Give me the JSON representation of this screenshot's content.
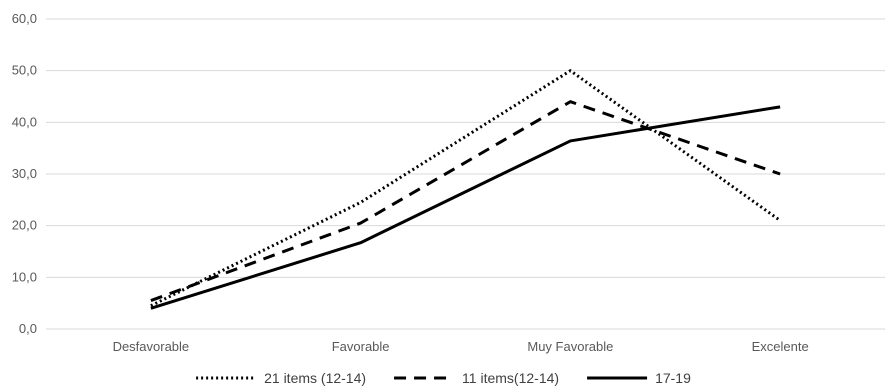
{
  "chart_data": {
    "type": "line",
    "title": "",
    "xlabel": "",
    "ylabel": "",
    "categories": [
      "Desfavorable",
      "Favorable",
      "Muy Favorable",
      "Excelente"
    ],
    "ylim": [
      0,
      60
    ],
    "yticks": [
      0,
      10,
      20,
      30,
      40,
      50,
      60
    ],
    "ytick_labels": [
      "0,0",
      "10,0",
      "20,0",
      "30,0",
      "40,0",
      "50,0",
      "60,0"
    ],
    "grid": true,
    "legend_position": "bottom",
    "series": [
      {
        "name": "21 items (12-14)",
        "style": "dotted",
        "color": "#000000",
        "values": [
          4.5,
          24.5,
          50.0,
          21.0
        ]
      },
      {
        "name": "11 items(12-14)",
        "style": "dashed",
        "color": "#000000",
        "values": [
          5.5,
          20.5,
          44.0,
          30.0
        ]
      },
      {
        "name": "17-19",
        "style": "solid",
        "color": "#000000",
        "values": [
          4.0,
          16.7,
          36.4,
          43.0
        ]
      }
    ],
    "colors": {
      "grid": "#d9d9d9",
      "text": "#595959",
      "legend_text": "#404040"
    }
  }
}
